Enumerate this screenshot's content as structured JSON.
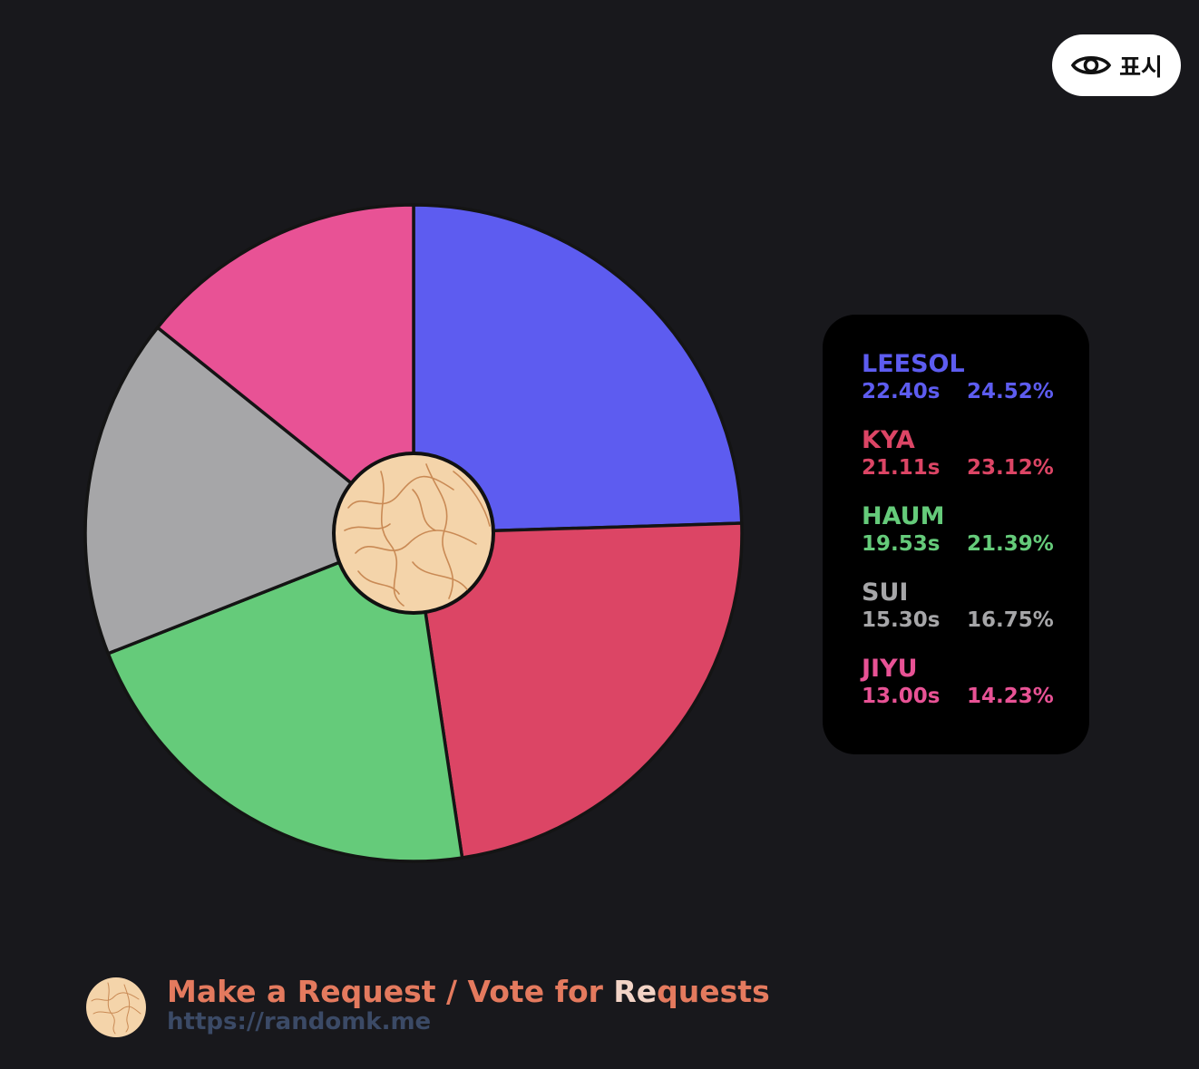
{
  "overlay": {
    "show_label": "표시"
  },
  "chart_data": {
    "type": "pie",
    "start": "12 o'clock, clockwise",
    "center_disc": true,
    "slices": [
      {
        "name": "LEESOL",
        "time": "22.40s",
        "percent": "24.52%",
        "value": 24.52,
        "color": "#5d5cf0"
      },
      {
        "name": "KYA",
        "time": "21.11s",
        "percent": "23.12%",
        "value": 23.12,
        "color": "#dc4565"
      },
      {
        "name": "HAUM",
        "time": "19.53s",
        "percent": "21.39%",
        "value": 21.39,
        "color": "#65cb7a"
      },
      {
        "name": "SUI",
        "time": "15.30s",
        "percent": "16.75%",
        "value": 16.75,
        "color": "#a6a6a8"
      },
      {
        "name": "JIYU",
        "time": "13.00s",
        "percent": "14.23%",
        "value": 14.23,
        "color": "#e85295"
      }
    ],
    "legend_placement": "right"
  },
  "footer": {
    "title_start": "Make a Request / Vote for ",
    "title_highlight": "Re",
    "title_end": "quests",
    "url": "https://randomk.me"
  }
}
